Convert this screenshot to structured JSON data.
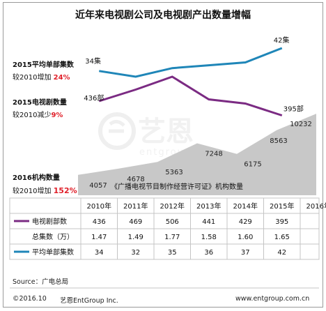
{
  "title": "近年来电视剧公司及电视剧产出数量增幅",
  "annotations": {
    "episodes": {
      "label": "2015平均单部集数",
      "note_prefix": "较2010增加",
      "note_value": "24%"
    },
    "dramas": {
      "label": "2015电视剧数量",
      "note_prefix": "较2010减少",
      "note_value": "9%"
    },
    "agencies": {
      "label": "2016机构数量",
      "note_prefix": "较2010增加",
      "note_value": "152%"
    }
  },
  "watermark": {
    "brand_cn": "艺恩",
    "brand_en": "entgroup"
  },
  "colors": {
    "blue": "#1f86b8",
    "purple": "#7b2b83",
    "gray": "#c8c8c8",
    "red": "#e0202a"
  },
  "chart_data": {
    "type": "line",
    "categories": [
      "2010年",
      "2011年",
      "2012年",
      "2013年",
      "2014年",
      "2015年",
      "2016年"
    ],
    "series": [
      {
        "name": "电视剧部数",
        "values": [
          436,
          469,
          506,
          441,
          429,
          395,
          null
        ],
        "end_labels": [
          "436部",
          "395部"
        ]
      },
      {
        "name": "总集数（万）",
        "values": [
          1.47,
          1.49,
          1.77,
          1.58,
          1.6,
          1.65,
          null
        ]
      },
      {
        "name": "平均单部集数",
        "values": [
          34,
          32,
          35,
          36,
          37,
          42,
          null
        ],
        "end_labels": [
          "34集",
          "42集"
        ]
      }
    ],
    "area": {
      "name": "《广播电视节目制作经营许可证》机构数量",
      "values": [
        4057,
        4678,
        5363,
        7248,
        6175,
        8563,
        10232
      ]
    },
    "table_rows": [
      {
        "label": "电视剧部数",
        "values": [
          "436",
          "469",
          "506",
          "441",
          "429",
          "395",
          ""
        ]
      },
      {
        "label": "总集数（万）",
        "values": [
          "1.47",
          "1.49",
          "1.77",
          "1.58",
          "1.60",
          "1.65",
          ""
        ]
      },
      {
        "label": "平均单部集数",
        "values": [
          "34",
          "32",
          "35",
          "36",
          "37",
          "42",
          ""
        ]
      }
    ]
  },
  "source": "Source：广电总局",
  "footer": {
    "date": "©2016.10",
    "company": "艺恩EntGroup Inc.",
    "url": "www.entgroup.com.cn"
  }
}
